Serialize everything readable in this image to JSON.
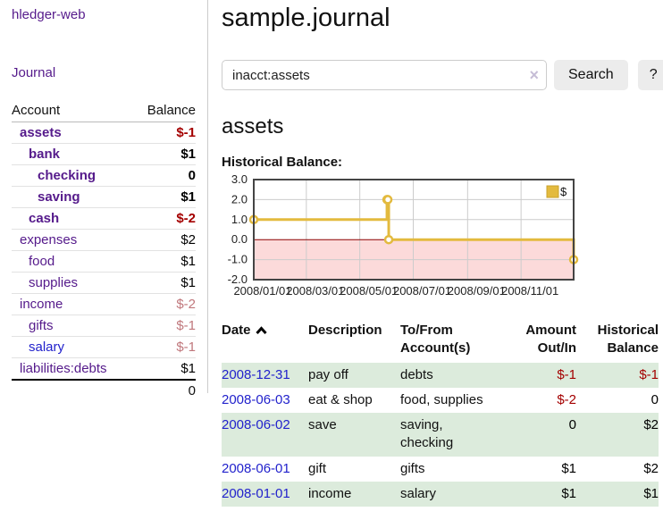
{
  "app": {
    "title": "hledger-web"
  },
  "colors": {
    "link_purple": "#551a8b",
    "link_blue": "#2222cc",
    "negative_strong": "#a40000",
    "negative_weak": "#c0777c",
    "text": "#000000",
    "stripe_green": "#dcebdc"
  },
  "sidebar": {
    "journal_link": "Journal",
    "accounts": {
      "headers": [
        "Account",
        "Balance"
      ],
      "rows": [
        {
          "name": "assets",
          "balance": "$-1",
          "depth": 1,
          "bold": true,
          "name_color": "#551a8b",
          "balance_color": "#a40000"
        },
        {
          "name": "bank",
          "balance": "$1",
          "depth": 2,
          "bold": true,
          "name_color": "#551a8b",
          "balance_color": "#000000"
        },
        {
          "name": "checking",
          "balance": "0",
          "depth": 3,
          "bold": true,
          "name_color": "#551a8b",
          "balance_color": "#000000"
        },
        {
          "name": "saving",
          "balance": "$1",
          "depth": 3,
          "bold": true,
          "name_color": "#551a8b",
          "balance_color": "#000000"
        },
        {
          "name": "cash",
          "balance": "$-2",
          "depth": 2,
          "bold": true,
          "name_color": "#551a8b",
          "balance_color": "#a40000"
        },
        {
          "name": "expenses",
          "balance": "$2",
          "depth": 1,
          "bold": false,
          "name_color": "#551a8b",
          "balance_color": "#000000"
        },
        {
          "name": "food",
          "balance": "$1",
          "depth": 2,
          "bold": false,
          "name_color": "#551a8b",
          "balance_color": "#000000"
        },
        {
          "name": "supplies",
          "balance": "$1",
          "depth": 2,
          "bold": false,
          "name_color": "#551a8b",
          "balance_color": "#000000"
        },
        {
          "name": "income",
          "balance": "$-2",
          "depth": 1,
          "bold": false,
          "name_color": "#551a8b",
          "balance_color": "#c0777c"
        },
        {
          "name": "gifts",
          "balance": "$-1",
          "depth": 2,
          "bold": false,
          "name_color": "#551a8b",
          "balance_color": "#c0777c"
        },
        {
          "name": "salary",
          "balance": "$-1",
          "depth": 2,
          "bold": false,
          "name_color": "#2222cc",
          "balance_color": "#c0777c"
        },
        {
          "name": "liabilities:debts",
          "balance": "$1",
          "depth": 1,
          "bold": false,
          "name_color": "#551a8b",
          "balance_color": "#000000"
        }
      ],
      "total": "0"
    }
  },
  "main": {
    "title": "sample.journal",
    "search": {
      "value": "inacct:assets",
      "clear_icon": "×",
      "button_label": "Search",
      "help_label": "?"
    },
    "account_heading": "assets",
    "chart_heading": "Historical Balance:",
    "register": {
      "headers": [
        "Date",
        "Description",
        "To/From Account(s)",
        "Amount Out/In",
        "Historical Balance"
      ],
      "rows": [
        {
          "date": "2008-12-31",
          "description": "pay off",
          "accounts": "debts",
          "amount": "$-1",
          "amount_color": "#a40000",
          "balance": "$-1",
          "balance_color": "#a40000"
        },
        {
          "date": "2008-06-03",
          "description": "eat & shop",
          "accounts": "food, supplies",
          "amount": "$-2",
          "amount_color": "#a40000",
          "balance": "0",
          "balance_color": "#000000"
        },
        {
          "date": "2008-06-02",
          "description": "save",
          "accounts": "saving, checking",
          "amount": "0",
          "amount_color": "#000000",
          "balance": "$2",
          "balance_color": "#000000"
        },
        {
          "date": "2008-06-01",
          "description": "gift",
          "accounts": "gifts",
          "amount": "$1",
          "amount_color": "#000000",
          "balance": "$2",
          "balance_color": "#000000"
        },
        {
          "date": "2008-01-01",
          "description": "income",
          "accounts": "salary",
          "amount": "$1",
          "amount_color": "#000000",
          "balance": "$1",
          "balance_color": "#000000"
        }
      ]
    }
  },
  "chart_data": {
    "type": "line",
    "step": true,
    "title": "Historical Balance:",
    "x_domain": [
      "2008-01-01",
      "2008-12-31"
    ],
    "ylim": [
      -2,
      3
    ],
    "y_ticks": [
      3.0,
      2.0,
      1.0,
      0.0,
      -1.0,
      -2.0
    ],
    "x_ticks": [
      "2008/01/01",
      "2008/03/01",
      "2008/05/01",
      "2008/07/01",
      "2008/09/01",
      "2008/11/01"
    ],
    "grid": true,
    "negative_fill": "#fcdada",
    "zero_line_color": "#8b0000",
    "border_color": "#444444",
    "legend": {
      "position": "top-right"
    },
    "series": [
      {
        "name": "$",
        "color": "#e3ba3e",
        "points": [
          [
            "2008-01-01",
            1
          ],
          [
            "2008-06-01",
            2
          ],
          [
            "2008-06-02",
            2
          ],
          [
            "2008-06-03",
            0
          ],
          [
            "2008-12-31",
            -1
          ]
        ]
      }
    ]
  }
}
